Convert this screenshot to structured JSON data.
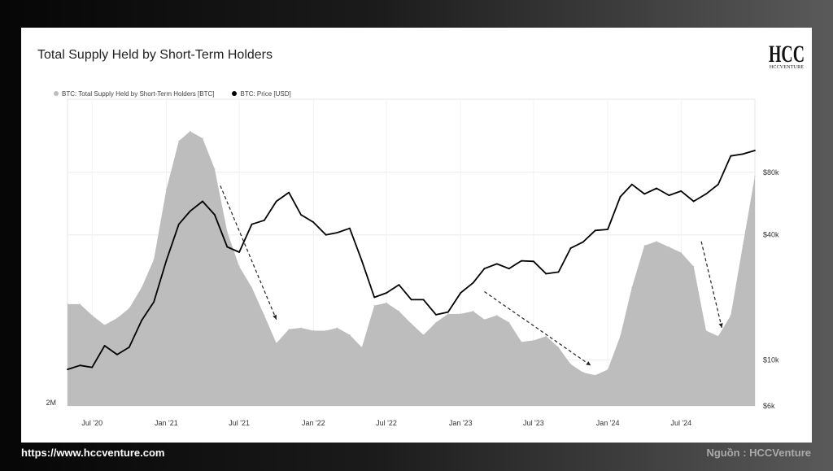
{
  "footer": {
    "url": "https://www.hccventure.com",
    "source": "Nguồn : HCCVenture"
  },
  "logo": {
    "text": "HCCVENTURE",
    "mark": "HCC"
  },
  "chart_data": {
    "type": "area",
    "title": "Total Supply Held by Short-Term Holders",
    "legend_placement": "top-left",
    "grid": true,
    "x_range": [
      "2020-05-01",
      "2024-12-31"
    ],
    "x_ticks": [
      {
        "date": "2020-07-01",
        "label": "Jul '20"
      },
      {
        "date": "2021-01-01",
        "label": "Jan '21"
      },
      {
        "date": "2021-07-01",
        "label": "Jul '21"
      },
      {
        "date": "2022-01-01",
        "label": "Jan '22"
      },
      {
        "date": "2022-07-01",
        "label": "Jul '22"
      },
      {
        "date": "2023-01-01",
        "label": "Jan '23"
      },
      {
        "date": "2023-07-01",
        "label": "Jul '23"
      },
      {
        "date": "2024-01-01",
        "label": "Jan '24"
      },
      {
        "date": "2024-07-01",
        "label": "Jul '24"
      }
    ],
    "left_axis": {
      "label": "",
      "ylim": [
        2000000,
        4200000
      ],
      "ticks": [
        {
          "value": 2000000,
          "label": "2M"
        }
      ]
    },
    "right_axis": {
      "label": "",
      "scale": "log",
      "ylim": [
        6000,
        180000
      ],
      "ticks": [
        {
          "value": 6000,
          "label": "$6k"
        },
        {
          "value": 10000,
          "label": "$10k"
        },
        {
          "value": 40000,
          "label": "$40k"
        },
        {
          "value": 80000,
          "label": "$80k"
        }
      ]
    },
    "series": [
      {
        "name": "BTC: Total Supply Held by Short-Term Holders [BTC]",
        "axis": "left",
        "color": "#bdbdbd",
        "points": [
          [
            "2020-05-01",
            2730000
          ],
          [
            "2020-06-01",
            2730000
          ],
          [
            "2020-07-01",
            2650000
          ],
          [
            "2020-08-01",
            2580000
          ],
          [
            "2020-09-01",
            2630000
          ],
          [
            "2020-10-01",
            2700000
          ],
          [
            "2020-11-01",
            2850000
          ],
          [
            "2020-12-01",
            3050000
          ],
          [
            "2021-01-01",
            3550000
          ],
          [
            "2021-02-01",
            3900000
          ],
          [
            "2021-03-01",
            3970000
          ],
          [
            "2021-04-01",
            3920000
          ],
          [
            "2021-05-01",
            3700000
          ],
          [
            "2021-06-01",
            3250000
          ],
          [
            "2021-07-01",
            3000000
          ],
          [
            "2021-08-01",
            2850000
          ],
          [
            "2021-09-01",
            2650000
          ],
          [
            "2021-10-01",
            2450000
          ],
          [
            "2021-11-01",
            2550000
          ],
          [
            "2021-12-01",
            2560000
          ],
          [
            "2022-01-01",
            2540000
          ],
          [
            "2022-02-01",
            2540000
          ],
          [
            "2022-03-01",
            2560000
          ],
          [
            "2022-04-01",
            2510000
          ],
          [
            "2022-05-01",
            2420000
          ],
          [
            "2022-06-01",
            2720000
          ],
          [
            "2022-07-01",
            2740000
          ],
          [
            "2022-08-01",
            2680000
          ],
          [
            "2022-09-01",
            2590000
          ],
          [
            "2022-10-01",
            2510000
          ],
          [
            "2022-11-01",
            2600000
          ],
          [
            "2022-12-01",
            2660000
          ],
          [
            "2023-01-01",
            2660000
          ],
          [
            "2023-02-01",
            2680000
          ],
          [
            "2023-03-01",
            2620000
          ],
          [
            "2023-04-01",
            2650000
          ],
          [
            "2023-05-01",
            2600000
          ],
          [
            "2023-06-01",
            2460000
          ],
          [
            "2023-07-01",
            2470000
          ],
          [
            "2023-08-01",
            2500000
          ],
          [
            "2023-09-01",
            2420000
          ],
          [
            "2023-10-01",
            2300000
          ],
          [
            "2023-11-01",
            2240000
          ],
          [
            "2023-12-01",
            2220000
          ],
          [
            "2024-01-01",
            2260000
          ],
          [
            "2024-02-01",
            2500000
          ],
          [
            "2024-03-01",
            2850000
          ],
          [
            "2024-04-01",
            3150000
          ],
          [
            "2024-05-01",
            3180000
          ],
          [
            "2024-06-01",
            3140000
          ],
          [
            "2024-07-01",
            3100000
          ],
          [
            "2024-08-01",
            3000000
          ],
          [
            "2024-09-01",
            2540000
          ],
          [
            "2024-10-01",
            2500000
          ],
          [
            "2024-11-01",
            2650000
          ],
          [
            "2024-12-01",
            3150000
          ],
          [
            "2024-12-31",
            3650000
          ]
        ]
      },
      {
        "name": "BTC: Price [USD]",
        "axis": "right",
        "color": "#000000",
        "points": [
          [
            "2020-05-01",
            9000
          ],
          [
            "2020-06-01",
            9400
          ],
          [
            "2020-07-01",
            9200
          ],
          [
            "2020-08-01",
            11700
          ],
          [
            "2020-09-01",
            10600
          ],
          [
            "2020-10-01",
            11500
          ],
          [
            "2020-11-01",
            15500
          ],
          [
            "2020-12-01",
            19000
          ],
          [
            "2021-01-01",
            30000
          ],
          [
            "2021-02-01",
            45000
          ],
          [
            "2021-03-01",
            52000
          ],
          [
            "2021-04-01",
            58000
          ],
          [
            "2021-05-01",
            50000
          ],
          [
            "2021-06-01",
            35000
          ],
          [
            "2021-07-01",
            33000
          ],
          [
            "2021-08-01",
            45000
          ],
          [
            "2021-09-01",
            47000
          ],
          [
            "2021-10-01",
            58000
          ],
          [
            "2021-11-01",
            64000
          ],
          [
            "2021-12-01",
            50000
          ],
          [
            "2022-01-01",
            46000
          ],
          [
            "2022-02-01",
            40000
          ],
          [
            "2022-03-01",
            41000
          ],
          [
            "2022-04-01",
            43000
          ],
          [
            "2022-05-01",
            30000
          ],
          [
            "2022-06-01",
            20000
          ],
          [
            "2022-07-01",
            21000
          ],
          [
            "2022-08-01",
            23000
          ],
          [
            "2022-09-01",
            19500
          ],
          [
            "2022-10-01",
            19500
          ],
          [
            "2022-11-01",
            16500
          ],
          [
            "2022-12-01",
            17000
          ],
          [
            "2023-01-01",
            21000
          ],
          [
            "2023-02-01",
            23500
          ],
          [
            "2023-03-01",
            27500
          ],
          [
            "2023-04-01",
            29000
          ],
          [
            "2023-05-01",
            27500
          ],
          [
            "2023-06-01",
            30000
          ],
          [
            "2023-07-01",
            29800
          ],
          [
            "2023-08-01",
            26000
          ],
          [
            "2023-09-01",
            26500
          ],
          [
            "2023-10-01",
            34500
          ],
          [
            "2023-11-01",
            37000
          ],
          [
            "2023-12-01",
            42000
          ],
          [
            "2024-01-01",
            42500
          ],
          [
            "2024-02-01",
            61000
          ],
          [
            "2024-03-01",
            70000
          ],
          [
            "2024-04-01",
            63000
          ],
          [
            "2024-05-01",
            67000
          ],
          [
            "2024-06-01",
            62000
          ],
          [
            "2024-07-01",
            65000
          ],
          [
            "2024-08-01",
            58000
          ],
          [
            "2024-09-01",
            63000
          ],
          [
            "2024-10-01",
            70000
          ],
          [
            "2024-11-01",
            96000
          ],
          [
            "2024-12-01",
            98000
          ],
          [
            "2024-12-31",
            102000
          ]
        ]
      }
    ],
    "annotations": [
      {
        "type": "arrow",
        "from": [
          "2021-05-15",
          3580000
        ],
        "to": [
          "2021-10-01",
          2620000
        ]
      },
      {
        "type": "arrow",
        "from": [
          "2023-03-01",
          2820000
        ],
        "to": [
          "2023-11-20",
          2290000
        ]
      },
      {
        "type": "arrow",
        "from": [
          "2024-08-20",
          3180000
        ],
        "to": [
          "2024-10-10",
          2560000
        ]
      }
    ]
  }
}
